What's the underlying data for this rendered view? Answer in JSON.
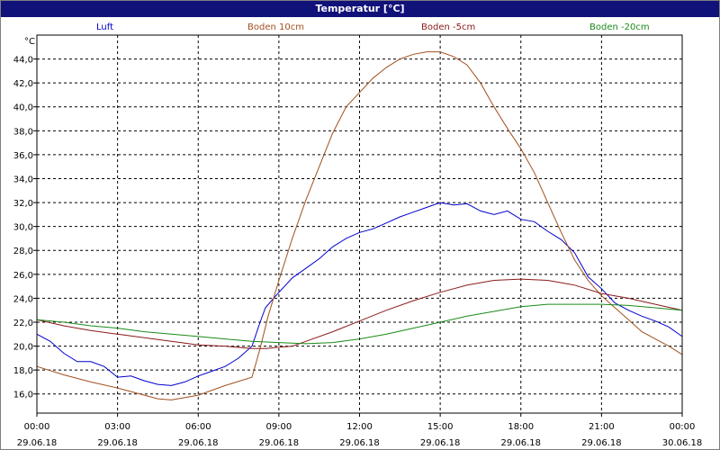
{
  "window": {
    "title": "Temperatur [°C]"
  },
  "chart_data": {
    "type": "line",
    "title": "Temperatur [°C]",
    "ylabel": "°C",
    "ylim": [
      14.4,
      46.0
    ],
    "yticks": [
      "16,0",
      "18,0",
      "20,0",
      "22,0",
      "24,0",
      "26,0",
      "28,0",
      "30,0",
      "32,0",
      "34,0",
      "36,0",
      "38,0",
      "40,0",
      "42,0",
      "44,0"
    ],
    "ytick_values": [
      16,
      18,
      20,
      22,
      24,
      26,
      28,
      30,
      32,
      34,
      36,
      38,
      40,
      42,
      44
    ],
    "xlim": [
      0,
      24
    ],
    "xticks": [
      {
        "time": "00:00",
        "date": "29.06.18"
      },
      {
        "time": "03:00",
        "date": "29.06.18"
      },
      {
        "time": "06:00",
        "date": "29.06.18"
      },
      {
        "time": "09:00",
        "date": "29.06.18"
      },
      {
        "time": "12:00",
        "date": "29.06.18"
      },
      {
        "time": "15:00",
        "date": "29.06.18"
      },
      {
        "time": "18:00",
        "date": "29.06.18"
      },
      {
        "time": "21:00",
        "date": "29.06.18"
      },
      {
        "time": "00:00",
        "date": "30.06.18"
      }
    ],
    "xtick_values": [
      0,
      3,
      6,
      9,
      12,
      15,
      18,
      21,
      24
    ],
    "grid": true,
    "legend_position": "top",
    "series": [
      {
        "name": "Luft",
        "color": "#0000cc",
        "x": [
          0,
          0.5,
          1,
          1.5,
          2,
          2.5,
          3,
          3.5,
          4,
          4.5,
          5,
          5.5,
          6,
          6.5,
          7,
          7.5,
          8,
          8.3,
          8.5,
          8.8,
          9,
          9.5,
          10,
          10.5,
          11,
          11.5,
          12,
          12.5,
          13,
          13.5,
          14,
          14.5,
          15,
          15.5,
          16,
          16.5,
          17,
          17.5,
          18,
          18.5,
          19,
          19.5,
          20,
          20.5,
          21,
          21.5,
          22,
          22.5,
          23,
          23.5,
          24
        ],
        "y": [
          21.0,
          20.4,
          19.4,
          18.7,
          18.7,
          18.3,
          17.4,
          17.5,
          17.1,
          16.8,
          16.7,
          17.0,
          17.5,
          17.9,
          18.3,
          19.0,
          20.0,
          22.0,
          23.2,
          24.0,
          24.5,
          25.7,
          26.5,
          27.3,
          28.3,
          29.0,
          29.5,
          29.8,
          30.3,
          30.8,
          31.2,
          31.6,
          32.0,
          31.8,
          31.9,
          31.3,
          31.0,
          31.3,
          30.6,
          30.4,
          29.6,
          28.9,
          27.8,
          25.8,
          24.8,
          23.6,
          23.0,
          22.5,
          22.1,
          21.6,
          20.8
        ]
      },
      {
        "name": "Boden 10cm",
        "color": "#a0501e",
        "x": [
          0,
          1,
          2,
          3,
          4,
          4.5,
          5,
          5.5,
          6,
          7,
          8,
          8.3,
          8.6,
          9,
          9.5,
          10,
          10.5,
          11,
          11.5,
          12,
          12.5,
          13,
          13.5,
          14,
          14.5,
          15,
          15.5,
          16,
          16.5,
          17,
          17.5,
          18,
          18.5,
          19,
          19.5,
          20,
          20.5,
          21,
          21.5,
          22,
          22.5,
          23,
          23.5,
          24
        ],
        "y": [
          18.3,
          17.6,
          17.0,
          16.5,
          15.9,
          15.6,
          15.5,
          15.7,
          15.9,
          16.7,
          17.4,
          19.8,
          22.5,
          25.5,
          29.0,
          32.2,
          35.0,
          37.8,
          40.0,
          41.2,
          42.4,
          43.3,
          44.0,
          44.4,
          44.6,
          44.6,
          44.2,
          43.5,
          42.0,
          40.0,
          38.2,
          36.5,
          34.5,
          32.0,
          29.5,
          27.2,
          25.5,
          24.2,
          23.2,
          22.2,
          21.2,
          20.6,
          20.0,
          19.3
        ]
      },
      {
        "name": "Boden -5cm",
        "color": "#8b1a1a",
        "x": [
          0,
          1,
          2,
          3,
          4,
          5,
          6,
          7,
          8,
          8.5,
          9,
          9.5,
          10,
          11,
          12,
          13,
          14,
          15,
          16,
          17,
          18,
          19,
          20,
          21,
          22,
          23,
          24
        ],
        "y": [
          22.2,
          21.7,
          21.3,
          21.0,
          20.7,
          20.4,
          20.1,
          20.0,
          19.8,
          19.8,
          19.9,
          20.0,
          20.4,
          21.2,
          22.1,
          23.0,
          23.8,
          24.5,
          25.1,
          25.5,
          25.6,
          25.5,
          25.1,
          24.4,
          24.0,
          23.5,
          23.0
        ]
      },
      {
        "name": "Boden -20cm",
        "color": "#1a8a1a",
        "x": [
          0,
          1,
          2,
          3,
          4,
          5,
          6,
          7,
          8,
          9,
          10,
          11,
          12,
          13,
          14,
          15,
          16,
          17,
          18,
          19,
          20,
          21,
          22,
          23,
          24
        ],
        "y": [
          22.2,
          22.0,
          21.7,
          21.5,
          21.2,
          21.0,
          20.8,
          20.6,
          20.4,
          20.3,
          20.2,
          20.3,
          20.6,
          21.0,
          21.5,
          22.0,
          22.5,
          22.9,
          23.3,
          23.5,
          23.5,
          23.5,
          23.4,
          23.2,
          23.0
        ]
      }
    ]
  }
}
